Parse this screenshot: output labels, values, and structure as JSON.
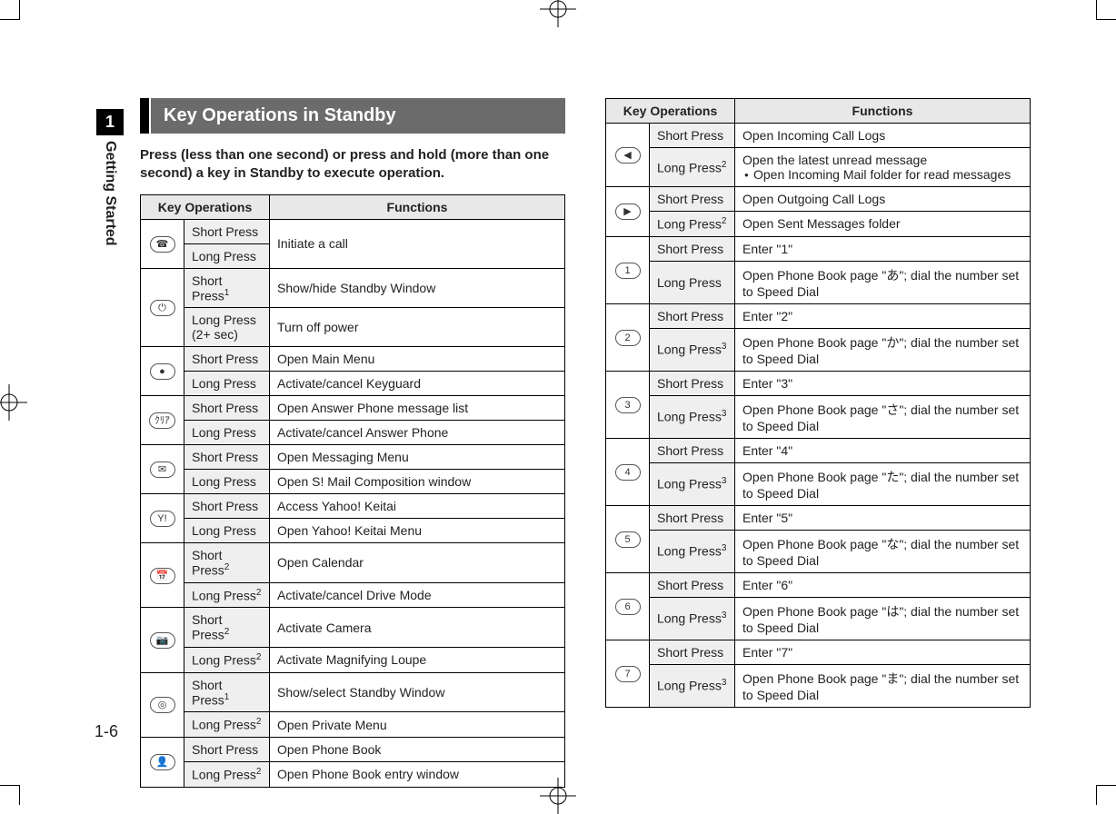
{
  "side_tab": {
    "number": "1",
    "label": "Getting Started"
  },
  "page_number": "1-6",
  "header_title": "Key Operations in Standby",
  "intro": "Press (less than one second) or press and hold (more than one second) a key in Standby to execute operation.",
  "th_key": "Key Operations",
  "th_func": "Functions",
  "left_rows": [
    {
      "icon": "☎",
      "icon_name": "call-key-icon",
      "op": "Short Press",
      "fn": "Initiate a call",
      "fn_rowspan": 2
    },
    {
      "op": "Long Press"
    },
    {
      "icon": "⏻",
      "icon_name": "end-key-icon",
      "op": "Short Press",
      "sup": "1",
      "fn": "Show/hide Standby Window"
    },
    {
      "op": "Long Press (2+ sec)",
      "fn": "Turn off power"
    },
    {
      "icon": "●",
      "icon_name": "center-key-icon",
      "op": "Short Press",
      "fn": "Open Main Menu"
    },
    {
      "op": "Long Press",
      "fn": "Activate/cancel Keyguard"
    },
    {
      "icon": "ｸﾘｱ",
      "icon_name": "clear-key-icon",
      "op": "Short Press",
      "fn": "Open Answer Phone message list"
    },
    {
      "op": "Long Press",
      "fn": "Activate/cancel Answer Phone"
    },
    {
      "icon": "✉",
      "icon_name": "mail-key-icon",
      "op": "Short Press",
      "fn": "Open Messaging Menu"
    },
    {
      "op": "Long Press",
      "fn": "Open S! Mail Composition window"
    },
    {
      "icon": "Y!",
      "icon_name": "yahoo-key-icon",
      "op": "Short Press",
      "fn": "Access Yahoo! Keitai"
    },
    {
      "op": "Long Press",
      "fn": "Open Yahoo! Keitai Menu"
    },
    {
      "icon": "📅",
      "icon_name": "calendar-key-icon",
      "op": "Short Press",
      "sup": "2",
      "fn": "Open Calendar"
    },
    {
      "op": "Long Press",
      "sup": "2",
      "fn": "Activate/cancel Drive Mode"
    },
    {
      "icon": "📷",
      "icon_name": "camera-key-icon",
      "op": "Short Press",
      "sup": "2",
      "fn": "Activate Camera"
    },
    {
      "op": "Long Press",
      "sup": "2",
      "fn": "Activate Magnifying Loupe"
    },
    {
      "icon": "◎",
      "icon_name": "shortcut-key-icon",
      "op": "Short Press",
      "sup": "1",
      "fn": "Show/select Standby Window"
    },
    {
      "op": "Long Press",
      "sup": "2",
      "fn": "Open Private Menu"
    },
    {
      "icon": "👤",
      "icon_name": "phonebook-key-icon",
      "op": "Short Press",
      "fn": "Open Phone Book"
    },
    {
      "op": "Long Press",
      "sup": "2",
      "fn": "Open Phone Book entry window"
    }
  ],
  "right_rows": [
    {
      "icon": "◀",
      "icon_name": "left-key-icon",
      "op": "Short Press",
      "fn": "Open Incoming Call Logs"
    },
    {
      "op": "Long Press",
      "sup": "2",
      "fn": "Open the latest unread message",
      "bullet": "Open Incoming Mail folder for read messages"
    },
    {
      "icon": "▶",
      "icon_name": "right-key-icon",
      "op": "Short Press",
      "fn": "Open Outgoing Call Logs"
    },
    {
      "op": "Long Press",
      "sup": "2",
      "fn": "Open Sent Messages folder"
    },
    {
      "icon": "1",
      "icon_name": "key1-icon",
      "op": "Short Press",
      "fn": "Enter \"1\""
    },
    {
      "op": "Long Press",
      "fn": "Open Phone Book page \"あ\"; dial the number set to Speed Dial"
    },
    {
      "icon": "2",
      "icon_name": "key2-icon",
      "op": "Short Press",
      "fn": "Enter \"2\""
    },
    {
      "op": "Long Press",
      "sup": "3",
      "fn": "Open Phone Book page \"か\"; dial the number set to Speed Dial"
    },
    {
      "icon": "3",
      "icon_name": "key3-icon",
      "op": "Short Press",
      "fn": "Enter \"3\""
    },
    {
      "op": "Long Press",
      "sup": "3",
      "fn": "Open Phone Book page \"さ\"; dial the number set to Speed Dial"
    },
    {
      "icon": "4",
      "icon_name": "key4-icon",
      "op": "Short Press",
      "fn": "Enter \"4\""
    },
    {
      "op": "Long Press",
      "sup": "3",
      "fn": "Open Phone Book page \"た\"; dial the number set to Speed Dial"
    },
    {
      "icon": "5",
      "icon_name": "key5-icon",
      "op": "Short Press",
      "fn": "Enter \"5\""
    },
    {
      "op": "Long Press",
      "sup": "3",
      "fn": "Open Phone Book page \"な\"; dial the number set to Speed Dial"
    },
    {
      "icon": "6",
      "icon_name": "key6-icon",
      "op": "Short Press",
      "fn": "Enter \"6\""
    },
    {
      "op": "Long Press",
      "sup": "3",
      "fn": "Open Phone Book page \"は\"; dial the number set to Speed Dial"
    },
    {
      "icon": "7",
      "icon_name": "key7-icon",
      "op": "Short Press",
      "fn": "Enter \"7\""
    },
    {
      "op": "Long Press",
      "sup": "3",
      "fn": "Open Phone Book page \"ま\"; dial the number set to Speed Dial"
    }
  ]
}
